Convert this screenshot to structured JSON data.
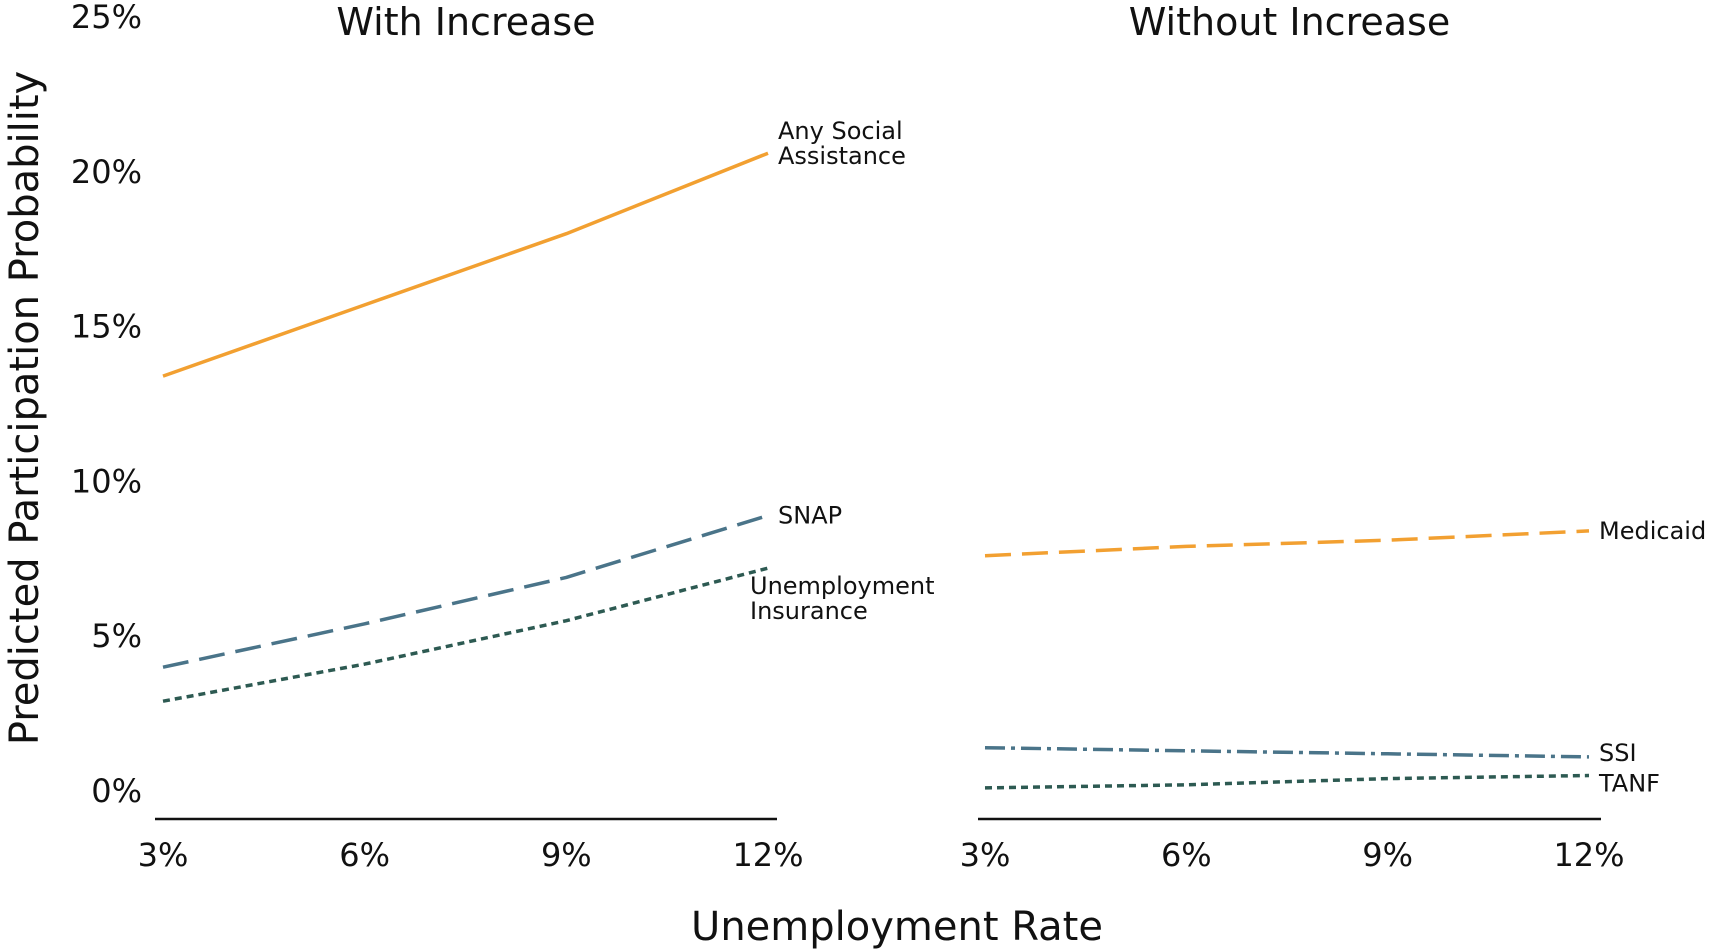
{
  "chart_data": {
    "type": "line",
    "y_axis_label": "Predicted Participation Probability",
    "x_axis_label": "Unemployment Rate",
    "ylim": [
      0,
      25
    ],
    "y_ticks": [
      "0%",
      "5%",
      "10%",
      "15%",
      "20%",
      "25%"
    ],
    "x_ticks": [
      "3%",
      "6%",
      "9%",
      "12%"
    ],
    "x": [
      3,
      6,
      9,
      12
    ],
    "grid": false,
    "colors": {
      "orange": "#f2a031",
      "slate": "#4a7489",
      "teal": "#2d5a52",
      "axis": "#111111"
    },
    "panels": [
      {
        "title": "With Increase",
        "series": [
          {
            "label_lines": [
              "Any Social",
              "Assistance"
            ],
            "values": [
              13.4,
              15.7,
              18.0,
              20.6
            ],
            "color": "#f2a031",
            "style": "solid"
          },
          {
            "label_lines": [
              "SNAP"
            ],
            "values": [
              4.0,
              5.4,
              6.9,
              8.9
            ],
            "color": "#4a7489",
            "style": "dashed"
          },
          {
            "label_lines": [
              "Unemployment",
              "Insurance"
            ],
            "values": [
              2.9,
              4.1,
              5.5,
              7.2
            ],
            "color": "#2d5a52",
            "style": "dotted"
          }
        ]
      },
      {
        "title": "Without Increase",
        "series": [
          {
            "label_lines": [
              "Medicaid"
            ],
            "values": [
              7.6,
              7.9,
              8.1,
              8.4
            ],
            "color": "#f2a031",
            "style": "dashed"
          },
          {
            "label_lines": [
              "SSI"
            ],
            "values": [
              1.4,
              1.3,
              1.2,
              1.1
            ],
            "color": "#4a7489",
            "style": "dashdot"
          },
          {
            "label_lines": [
              "TANF"
            ],
            "values": [
              0.1,
              0.2,
              0.4,
              0.5
            ],
            "color": "#2d5a52",
            "style": "dotted"
          }
        ]
      }
    ]
  }
}
